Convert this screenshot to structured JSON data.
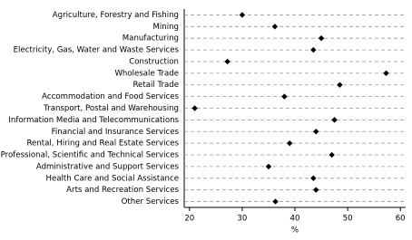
{
  "chart_data": {
    "type": "dot",
    "x_label": "%",
    "categories": [
      "Agriculture, Forestry and Fishing",
      "Mining",
      "Manufacturing",
      "Electricity, Gas, Water and Waste Services",
      "Construction",
      "Wholesale Trade",
      "Retail Trade",
      "Accommodation and Food Services",
      "Transport, Postal and Warehousing",
      "Information Media and Telecommunications",
      "Financial and Insurance Services",
      "Rental, Hiring and Real Estate Services",
      "Professional, Scientific and Technical Services",
      "Administrative and Support Services",
      "Health Care and Social Assistance",
      "Arts and Recreation Services",
      "Other Services"
    ],
    "values": [
      30,
      36.2,
      45,
      43.5,
      27.2,
      57.3,
      48.5,
      38,
      21,
      47.5,
      44,
      39,
      47,
      35,
      43.5,
      44,
      36.3
    ],
    "color": "#000000",
    "xlim": [
      19,
      61
    ],
    "xticks": [
      20,
      30,
      40,
      50,
      60
    ],
    "grid": true
  }
}
